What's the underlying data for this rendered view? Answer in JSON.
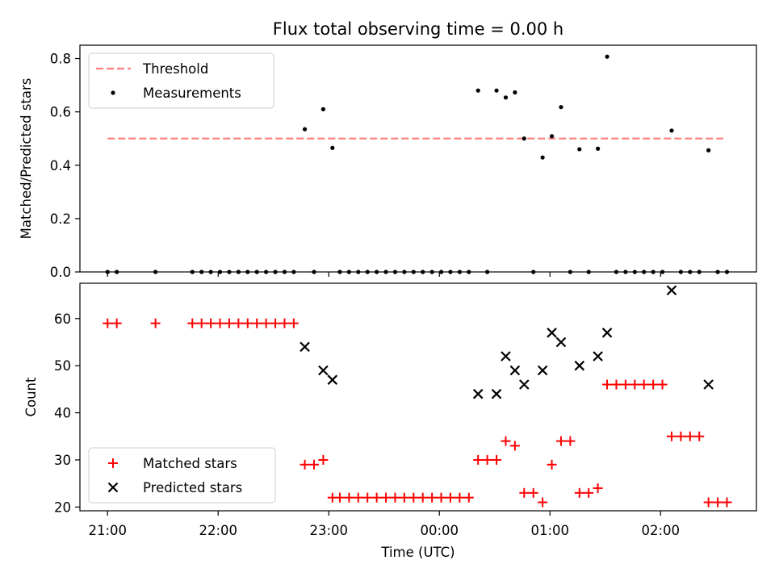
{
  "chart_data": {
    "type": "scatter",
    "title": "Flux total observing time = 0.00 h",
    "x_axis": {
      "label": "Time (UTC)",
      "range": [
        "20:45",
        "02:52"
      ],
      "tick_labels": [
        "21:00",
        "22:00",
        "23:00",
        "00:00",
        "01:00",
        "02:00"
      ]
    },
    "panels": [
      {
        "ylabel": "Matched/Predicted stars",
        "ylim": [
          0,
          0.85
        ],
        "yticks": [
          "0.0",
          "0.2",
          "0.4",
          "0.6",
          "0.8"
        ],
        "legend_position": "top-left",
        "threshold": {
          "name": "Threshold",
          "value": 0.5,
          "x_start": "21:00",
          "x_end": "02:34",
          "color": "#ff7f7f",
          "style": "dashed"
        },
        "series": [
          {
            "name": "Measurements",
            "marker": "dot",
            "color": "#000000",
            "points": [
              [
                "21:00",
                0
              ],
              [
                "21:05",
                0
              ],
              [
                "21:26",
                0
              ],
              [
                "21:46",
                0
              ],
              [
                "21:51",
                0
              ],
              [
                "21:56",
                0
              ],
              [
                "22:01",
                0
              ],
              [
                "22:06",
                0
              ],
              [
                "22:11",
                0
              ],
              [
                "22:16",
                0
              ],
              [
                "22:21",
                0
              ],
              [
                "22:26",
                0
              ],
              [
                "22:31",
                0
              ],
              [
                "22:36",
                0
              ],
              [
                "22:41",
                0
              ],
              [
                "22:47",
                0.535
              ],
              [
                "22:52",
                0
              ],
              [
                "22:57",
                0.61
              ],
              [
                "23:02",
                0.465
              ],
              [
                "23:06",
                0
              ],
              [
                "23:11",
                0
              ],
              [
                "23:16",
                0
              ],
              [
                "23:21",
                0
              ],
              [
                "23:26",
                0
              ],
              [
                "23:31",
                0
              ],
              [
                "23:36",
                0
              ],
              [
                "23:41",
                0
              ],
              [
                "23:46",
                0
              ],
              [
                "23:51",
                0
              ],
              [
                "23:56",
                0
              ],
              [
                "00:01",
                0
              ],
              [
                "00:06",
                0
              ],
              [
                "00:11",
                0
              ],
              [
                "00:16",
                0
              ],
              [
                "00:21",
                0.68
              ],
              [
                "00:26",
                0
              ],
              [
                "00:31",
                0.68
              ],
              [
                "00:36",
                0.654
              ],
              [
                "00:41",
                0.673
              ],
              [
                "00:46",
                0.5
              ],
              [
                "00:51",
                0
              ],
              [
                "00:56",
                0.429
              ],
              [
                "01:01",
                0.509
              ],
              [
                "01:06",
                0.618
              ],
              [
                "01:11",
                0
              ],
              [
                "01:16",
                0.46
              ],
              [
                "01:21",
                0
              ],
              [
                "01:26",
                0.462
              ],
              [
                "01:31",
                0.807
              ],
              [
                "01:36",
                0
              ],
              [
                "01:41",
                0
              ],
              [
                "01:46",
                0
              ],
              [
                "01:51",
                0
              ],
              [
                "01:56",
                0
              ],
              [
                "02:01",
                0
              ],
              [
                "02:06",
                0.53
              ],
              [
                "02:11",
                0
              ],
              [
                "02:16",
                0
              ],
              [
                "02:21",
                0
              ],
              [
                "02:26",
                0.456
              ],
              [
                "02:31",
                0
              ],
              [
                "02:36",
                0
              ]
            ]
          }
        ]
      },
      {
        "ylabel": "Count",
        "ylim": [
          19.2,
          67.5
        ],
        "yticks": [
          "20",
          "30",
          "40",
          "50",
          "60"
        ],
        "legend_position": "bottom-left",
        "series": [
          {
            "name": "Matched stars",
            "marker": "plus",
            "color": "#ff0000",
            "points": [
              [
                "21:00",
                59
              ],
              [
                "21:05",
                59
              ],
              [
                "21:26",
                59
              ],
              [
                "21:46",
                59
              ],
              [
                "21:51",
                59
              ],
              [
                "21:56",
                59
              ],
              [
                "22:01",
                59
              ],
              [
                "22:06",
                59
              ],
              [
                "22:11",
                59
              ],
              [
                "22:16",
                59
              ],
              [
                "22:21",
                59
              ],
              [
                "22:26",
                59
              ],
              [
                "22:31",
                59
              ],
              [
                "22:36",
                59
              ],
              [
                "22:41",
                59
              ],
              [
                "22:47",
                29
              ],
              [
                "22:52",
                29
              ],
              [
                "22:57",
                30
              ],
              [
                "23:02",
                22
              ],
              [
                "23:06",
                22
              ],
              [
                "23:11",
                22
              ],
              [
                "23:16",
                22
              ],
              [
                "23:21",
                22
              ],
              [
                "23:26",
                22
              ],
              [
                "23:31",
                22
              ],
              [
                "23:36",
                22
              ],
              [
                "23:41",
                22
              ],
              [
                "23:46",
                22
              ],
              [
                "23:51",
                22
              ],
              [
                "23:56",
                22
              ],
              [
                "00:01",
                22
              ],
              [
                "00:06",
                22
              ],
              [
                "00:11",
                22
              ],
              [
                "00:16",
                22
              ],
              [
                "00:21",
                30
              ],
              [
                "00:26",
                30
              ],
              [
                "00:31",
                30
              ],
              [
                "00:36",
                34
              ],
              [
                "00:41",
                33
              ],
              [
                "00:46",
                23
              ],
              [
                "00:51",
                23
              ],
              [
                "00:56",
                21
              ],
              [
                "01:01",
                29
              ],
              [
                "01:06",
                34
              ],
              [
                "01:11",
                34
              ],
              [
                "01:16",
                23
              ],
              [
                "01:21",
                23
              ],
              [
                "01:26",
                24
              ],
              [
                "01:31",
                46
              ],
              [
                "01:36",
                46
              ],
              [
                "01:41",
                46
              ],
              [
                "01:46",
                46
              ],
              [
                "01:51",
                46
              ],
              [
                "01:56",
                46
              ],
              [
                "02:01",
                46
              ],
              [
                "02:06",
                35
              ],
              [
                "02:11",
                35
              ],
              [
                "02:16",
                35
              ],
              [
                "02:21",
                35
              ],
              [
                "02:26",
                21
              ],
              [
                "02:31",
                21
              ],
              [
                "02:36",
                21
              ]
            ]
          },
          {
            "name": "Predicted stars",
            "marker": "x",
            "color": "#000000",
            "points": [
              [
                "22:47",
                54
              ],
              [
                "22:57",
                49
              ],
              [
                "23:02",
                47
              ],
              [
                "00:21",
                44
              ],
              [
                "00:31",
                44
              ],
              [
                "00:36",
                52
              ],
              [
                "00:41",
                49
              ],
              [
                "00:46",
                46
              ],
              [
                "00:56",
                49
              ],
              [
                "01:01",
                57
              ],
              [
                "01:06",
                55
              ],
              [
                "01:16",
                50
              ],
              [
                "01:26",
                52
              ],
              [
                "01:31",
                57
              ],
              [
                "02:06",
                66
              ],
              [
                "02:26",
                46
              ]
            ]
          }
        ]
      }
    ]
  }
}
